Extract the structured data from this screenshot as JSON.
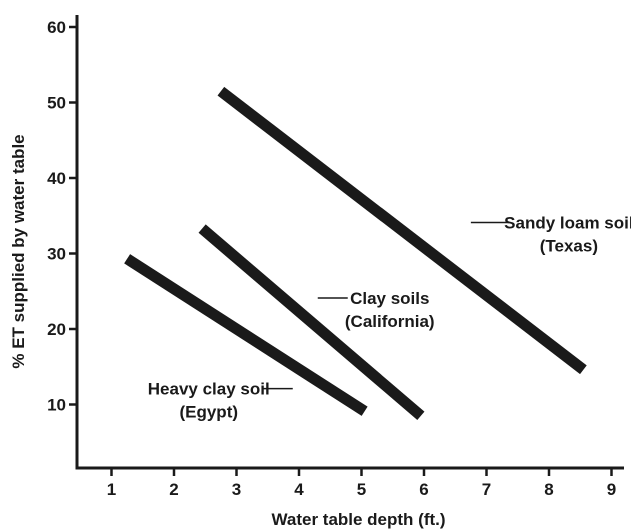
{
  "chart_data": {
    "type": "line",
    "title": "",
    "xlabel": "Water table depth (ft.)",
    "ylabel": "% ET supplied by water table",
    "xlim": [
      0,
      9.2
    ],
    "ylim": [
      0,
      62
    ],
    "xticks": [
      1,
      2,
      3,
      4,
      5,
      6,
      7,
      8,
      9
    ],
    "yticks": [
      10,
      20,
      30,
      40,
      50,
      60
    ],
    "grid": false,
    "series": [
      {
        "name": "Sandy loam soil (Texas)",
        "label_lines": [
          "Sandy loam soil",
          "(Texas)"
        ],
        "points": [
          [
            2.75,
            51.5
          ],
          [
            8.55,
            14.6
          ]
        ],
        "label_anchor": [
          6.75,
          34.1
        ]
      },
      {
        "name": "Clay soils (California)",
        "label_lines": [
          "Clay soils",
          "(California)"
        ],
        "points": [
          [
            2.45,
            33.3
          ],
          [
            5.95,
            8.5
          ]
        ],
        "label_anchor": [
          4.3,
          24.1
        ]
      },
      {
        "name": "Heavy clay soil (Egypt)",
        "label_lines": [
          "Heavy clay soil",
          "(Egypt)"
        ],
        "points": [
          [
            1.25,
            29.3
          ],
          [
            5.05,
            9.1
          ]
        ],
        "label_anchor": [
          3.9,
          12.1
        ]
      }
    ]
  }
}
